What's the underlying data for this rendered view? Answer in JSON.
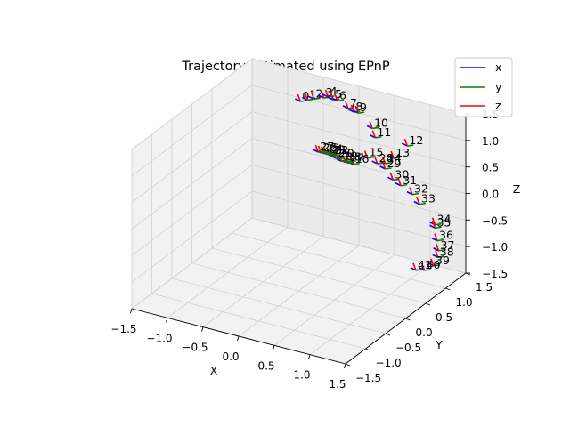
{
  "chart_data": {
    "type": "scatter",
    "title": "Trajectory estimated using EPnP",
    "xlabel": "X",
    "ylabel": "Y",
    "zlabel": "Z",
    "xlim": [
      -1.5,
      1.5
    ],
    "ylim": [
      -1.5,
      1.5
    ],
    "zlim": [
      -1.5,
      1.5
    ],
    "xticks": [
      "−1.5",
      "−1.0",
      "−0.5",
      "0.0",
      "0.5",
      "1.0",
      "1.5"
    ],
    "yticks": [
      "−1.5",
      "−1.0",
      "−0.5",
      "0.0",
      "0.5",
      "1.0",
      "1.5"
    ],
    "zticks": [
      "−1.5",
      "−1.0",
      "−0.5",
      "0.0",
      "0.5",
      "1.0",
      "1.5"
    ],
    "grid": true,
    "legend_position": "top-right",
    "legend": [
      {
        "label": "x",
        "color": "#0000ff"
      },
      {
        "label": "y",
        "color": "#008000"
      },
      {
        "label": "z",
        "color": "#ff0000"
      }
    ],
    "poses": [
      {
        "label": "0",
        "x": -0.77,
        "y": 1.41,
        "z": 1.0
      },
      {
        "label": "1",
        "x": -0.67,
        "y": 1.41,
        "z": 1.06
      },
      {
        "label": "2",
        "x": -0.58,
        "y": 1.41,
        "z": 1.11
      },
      {
        "label": "3",
        "x": -0.44,
        "y": 1.41,
        "z": 1.18
      },
      {
        "label": "4",
        "x": -0.38,
        "y": 1.41,
        "z": 1.22
      },
      {
        "label": "5",
        "x": -0.31,
        "y": 1.41,
        "z": 1.19
      },
      {
        "label": "6",
        "x": -0.25,
        "y": 1.41,
        "z": 1.19
      },
      {
        "label": "7",
        "x": -0.1,
        "y": 1.41,
        "z": 1.1
      },
      {
        "label": "8",
        "x": -0.02,
        "y": 1.41,
        "z": 1.06
      },
      {
        "label": "9",
        "x": 0.04,
        "y": 1.41,
        "z": 1.06
      },
      {
        "label": "10",
        "x": 0.24,
        "y": 1.41,
        "z": 0.84
      },
      {
        "label": "11",
        "x": 0.28,
        "y": 1.41,
        "z": 0.68
      },
      {
        "label": "12",
        "x": 0.73,
        "y": 1.41,
        "z": 0.68
      },
      {
        "label": "13",
        "x": 0.54,
        "y": 1.41,
        "z": 0.38
      },
      {
        "label": "14",
        "x": 0.42,
        "y": 1.41,
        "z": 0.24
      },
      {
        "label": "15",
        "x": 0.17,
        "y": 1.41,
        "z": 0.26
      },
      {
        "label": "16",
        "x": -0.03,
        "y": 1.41,
        "z": 0.07
      },
      {
        "label": "17",
        "x": -0.1,
        "y": 1.41,
        "z": 0.07
      },
      {
        "label": "18",
        "x": -0.14,
        "y": 1.41,
        "z": 0.07
      },
      {
        "label": "19",
        "x": -0.19,
        "y": 1.41,
        "z": 0.07
      },
      {
        "label": "20",
        "x": -0.24,
        "y": 1.41,
        "z": 0.1
      },
      {
        "label": "21",
        "x": -0.27,
        "y": 1.41,
        "z": 0.1
      },
      {
        "label": "22",
        "x": -0.32,
        "y": 1.41,
        "z": 0.13
      },
      {
        "label": "23",
        "x": -0.36,
        "y": 1.41,
        "z": 0.13
      },
      {
        "label": "24",
        "x": -0.4,
        "y": 1.41,
        "z": 0.13
      },
      {
        "label": "25",
        "x": -0.44,
        "y": 1.41,
        "z": 0.13
      },
      {
        "label": "26",
        "x": -0.48,
        "y": 1.41,
        "z": 0.13
      },
      {
        "label": "27",
        "x": -0.52,
        "y": 1.41,
        "z": 0.13
      },
      {
        "label": "28",
        "x": 0.31,
        "y": 1.41,
        "z": 0.2
      },
      {
        "label": "29",
        "x": 0.42,
        "y": 1.41,
        "z": 0.14
      },
      {
        "label": "30",
        "x": 0.53,
        "y": 1.41,
        "z": -0.03
      },
      {
        "label": "31",
        "x": 0.64,
        "y": 1.41,
        "z": -0.1
      },
      {
        "label": "32",
        "x": 0.8,
        "y": 1.41,
        "z": -0.21
      },
      {
        "label": "33",
        "x": 0.9,
        "y": 1.41,
        "z": -0.36
      },
      {
        "label": "34",
        "x": 1.12,
        "y": 1.41,
        "z": -0.67
      },
      {
        "label": "35",
        "x": 1.12,
        "y": 1.41,
        "z": -0.73
      },
      {
        "label": "36",
        "x": 1.15,
        "y": 1.41,
        "z": -0.96
      },
      {
        "label": "37",
        "x": 1.17,
        "y": 1.41,
        "z": -1.14
      },
      {
        "label": "38",
        "x": 1.16,
        "y": 1.41,
        "z": -1.27
      },
      {
        "label": "39",
        "x": 1.1,
        "y": 1.41,
        "z": -1.45
      },
      {
        "label": "40",
        "x": 0.97,
        "y": 1.41,
        "z": -1.58
      },
      {
        "label": "41",
        "x": 0.85,
        "y": 1.41,
        "z": -1.62
      }
    ]
  }
}
